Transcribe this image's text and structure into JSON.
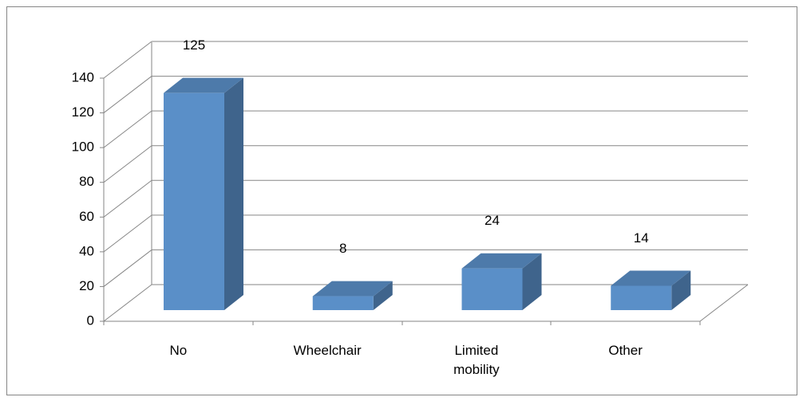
{
  "chart_data": {
    "type": "bar3d",
    "categories": [
      "No",
      "Wheelchair",
      "Limited mobility",
      "Other"
    ],
    "values": [
      125,
      8,
      24,
      14
    ],
    "color": "#5a8fc8",
    "ylim": [
      0,
      140
    ],
    "yticks": [
      0,
      20,
      40,
      60,
      80,
      100,
      120,
      140
    ],
    "grid": true
  }
}
